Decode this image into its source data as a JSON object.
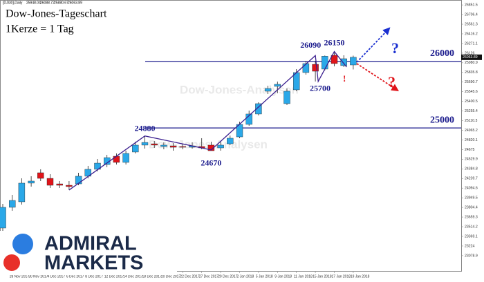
{
  "chart_data": {
    "type": "candlestick",
    "symbol": "[DJI30],Daily",
    "title": "Dow-Jones-Tageschart",
    "subtitle": "1Kerze = 1 Tag",
    "watermark": "Dow-Jones-Analysen",
    "brand": [
      "ADMIRAL",
      "MARKETS"
    ],
    "up_color": "#2aa8e8",
    "down_color": "#e0141a",
    "categories": [
      null,
      "28 Nov 2017",
      null,
      "30 Nov 2017",
      null,
      "4 Dec 2017",
      null,
      "6 Dec 2017",
      null,
      "8 Dec 2017",
      null,
      "12 Dec 2017",
      null,
      "14 Dec 2017",
      null,
      "18 Dec 2017",
      null,
      "20 Dec 2017",
      null,
      "22 Dec 2017",
      null,
      "27 Dec 2017",
      null,
      "29 Dec 2017",
      null,
      "2 Jan 2018",
      null,
      "5 Jan 2018",
      null,
      "9 Jan 2018",
      null,
      "11 Jan 2018",
      null,
      "15 Jan 2018",
      null,
      "17 Jan 2018",
      null,
      "19 Jan 2018"
    ],
    "open": [
      23494,
      23806,
      23889,
      24170,
      24326,
      24242,
      24159,
      24138,
      24159,
      24274,
      24378,
      24450,
      24575,
      24482,
      24638,
      24742,
      24762,
      24721,
      24731,
      24721,
      24710,
      24721,
      24742,
      24700,
      24762,
      24866,
      25054,
      25210,
      25553,
      25626,
      25366,
      25574,
      25834,
      25958,
      25886,
      26094,
      25938,
      25948.04
    ],
    "high": [
      23858,
      23993,
      24242,
      24274,
      24378,
      24305,
      24201,
      24201,
      24326,
      24430,
      24534,
      24596,
      24617,
      24658,
      24794,
      24880,
      24804,
      24783,
      24773,
      24762,
      24783,
      24846,
      24794,
      24794,
      24887,
      25095,
      25262,
      25386,
      25636,
      25698,
      25594,
      25886,
      26010,
      26010,
      26090,
      26150,
      26094,
      26088.72
    ],
    "low": [
      23390,
      23754,
      23847,
      24118,
      24201,
      24097,
      24097,
      24066,
      24138,
      24242,
      24346,
      24409,
      24450,
      24450,
      24617,
      24690,
      24700,
      24679,
      24658,
      24679,
      24690,
      24679,
      24670,
      24658,
      24742,
      24846,
      25033,
      25189,
      25511,
      25522,
      25345,
      25553,
      25802,
      25700,
      25865,
      25927,
      25917,
      25880.67
    ],
    "close": [
      23806,
      23910,
      24170,
      24201,
      24242,
      24138,
      24138,
      24118,
      24274,
      24378,
      24471,
      24554,
      24482,
      24617,
      24742,
      24783,
      24742,
      24742,
      24710,
      24710,
      24731,
      24700,
      24658,
      24742,
      24846,
      25054,
      25210,
      25366,
      25594,
      25657,
      25553,
      25834,
      25969,
      25854,
      26080,
      25969,
      26042,
      26063.89
    ],
    "ylim": [
      22848.8,
      26904.8
    ],
    "yticks": [
      26851.5,
      26706.4,
      26561.3,
      26416.2,
      26271.1,
      26126,
      25980.9,
      25835.8,
      25690.7,
      25545.6,
      25400.5,
      25255.4,
      25110.3,
      24965.2,
      24820.1,
      24675,
      24529.9,
      24384.8,
      24239.7,
      24094.6,
      23949.5,
      23804.4,
      23659.3,
      23514.2,
      23369.1,
      23224,
      23078.9
    ],
    "levels": [
      26000,
      25000
    ],
    "price_labels": [
      24880,
      24670,
      26090,
      25700,
      26150
    ],
    "marks": [
      "?",
      "?",
      "!"
    ]
  }
}
